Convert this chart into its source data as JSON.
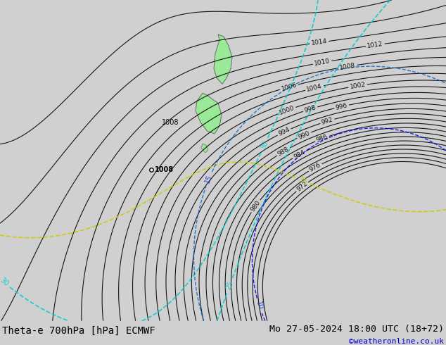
{
  "title_left": "Theta-e 700hPa [hPa] ECMWF",
  "title_right": "Mo 27-05-2024 18:00 UTC (18+72)",
  "copyright": "©weatheronline.co.uk",
  "bg_color": "#d0d0d0",
  "map_bg": "#d0d0d0",
  "bottom_bar_color": "#c8c8c8",
  "title_fontsize": 10,
  "copyright_color": "#0000cc",
  "figsize": [
    6.34,
    4.9
  ],
  "dpi": 100
}
